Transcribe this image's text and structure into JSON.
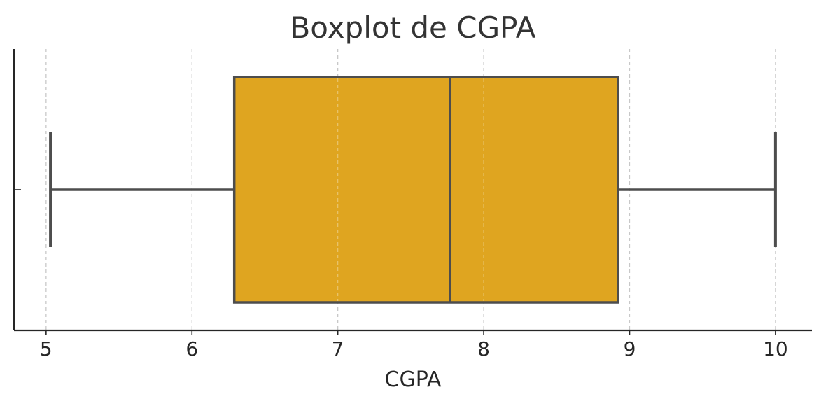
{
  "chart_data": {
    "type": "boxplot",
    "title": "Boxplot de CGPA",
    "xlabel": "CGPA",
    "ylabel": "",
    "orientation": "horizontal",
    "xlim": [
      4.78,
      10.25
    ],
    "xticks": [
      5,
      6,
      7,
      8,
      9,
      10
    ],
    "grid": "vertical dashed",
    "series": [
      {
        "whisker_low": 5.03,
        "q1": 6.29,
        "median": 7.77,
        "q3": 8.92,
        "whisker_high": 10.0
      }
    ],
    "colors": {
      "box_fill": "#DFA520",
      "box_edge": "#4D4D4D",
      "grid": "#C8C8C8",
      "axis": "#262626"
    }
  }
}
